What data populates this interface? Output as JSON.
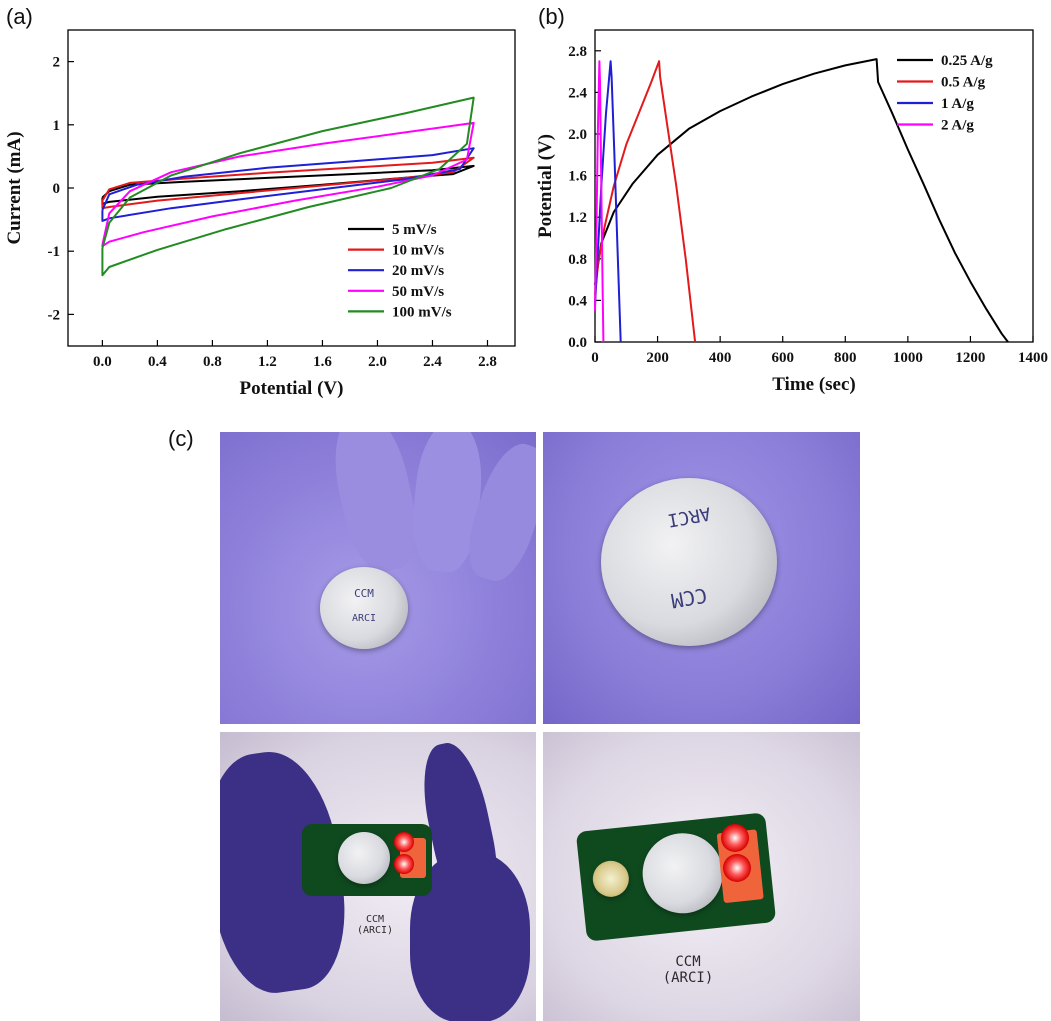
{
  "panels": {
    "a": "(a)",
    "b": "(b)",
    "c": "(c)"
  },
  "chart_data": [
    {
      "type": "line",
      "id": "a",
      "xlabel": "Potential (V)",
      "ylabel": "Current (mA)",
      "xlim": [
        -0.25,
        3.0
      ],
      "ylim": [
        -2.5,
        2.5
      ],
      "xticks": [
        0.0,
        0.4,
        0.8,
        1.2,
        1.6,
        2.0,
        2.4,
        2.8
      ],
      "xtick_labels": [
        "0.0",
        "0.4",
        "0.8",
        "1.2",
        "1.6",
        "2.0",
        "2.4",
        "2.8"
      ],
      "yticks": [
        -2,
        -1,
        0,
        1,
        2
      ],
      "ytick_labels": [
        "-2",
        "-1",
        "0",
        "1",
        "2"
      ],
      "legend_position": "bottom-right",
      "series": [
        {
          "name": "5 mV/s",
          "color": "#000000",
          "upper": [
            [
              0,
              -0.15
            ],
            [
              0.05,
              -0.05
            ],
            [
              0.2,
              0.05
            ],
            [
              0.6,
              0.1
            ],
            [
              1.2,
              0.16
            ],
            [
              1.8,
              0.22
            ],
            [
              2.4,
              0.28
            ],
            [
              2.7,
              0.35
            ]
          ],
          "lower": [
            [
              2.7,
              0.35
            ],
            [
              2.55,
              0.22
            ],
            [
              2.3,
              0.18
            ],
            [
              1.6,
              0.05
            ],
            [
              1.0,
              -0.05
            ],
            [
              0.4,
              -0.14
            ],
            [
              0.05,
              -0.22
            ],
            [
              0,
              -0.25
            ]
          ]
        },
        {
          "name": "10 mV/s",
          "color": "#e31a1c",
          "upper": [
            [
              0,
              -0.2
            ],
            [
              0.05,
              -0.02
            ],
            [
              0.2,
              0.08
            ],
            [
              0.6,
              0.15
            ],
            [
              1.2,
              0.24
            ],
            [
              1.8,
              0.32
            ],
            [
              2.4,
              0.4
            ],
            [
              2.7,
              0.48
            ]
          ],
          "lower": [
            [
              2.7,
              0.48
            ],
            [
              2.55,
              0.25
            ],
            [
              2.2,
              0.16
            ],
            [
              1.6,
              0.04
            ],
            [
              1.0,
              -0.08
            ],
            [
              0.4,
              -0.2
            ],
            [
              0.05,
              -0.3
            ],
            [
              0,
              -0.32
            ]
          ]
        },
        {
          "name": "20 mV/s",
          "color": "#1f1fd6",
          "upper": [
            [
              0,
              -0.35
            ],
            [
              0.05,
              -0.1
            ],
            [
              0.25,
              0.05
            ],
            [
              0.6,
              0.18
            ],
            [
              1.2,
              0.32
            ],
            [
              1.8,
              0.42
            ],
            [
              2.4,
              0.52
            ],
            [
              2.7,
              0.63
            ]
          ],
          "lower": [
            [
              2.7,
              0.63
            ],
            [
              2.6,
              0.3
            ],
            [
              2.2,
              0.14
            ],
            [
              1.6,
              -0.02
            ],
            [
              1.0,
              -0.18
            ],
            [
              0.5,
              -0.32
            ],
            [
              0.05,
              -0.48
            ],
            [
              0,
              -0.52
            ]
          ]
        },
        {
          "name": "50 mV/s",
          "color": "#ff00ff",
          "upper": [
            [
              0,
              -0.9
            ],
            [
              0.05,
              -0.4
            ],
            [
              0.2,
              -0.05
            ],
            [
              0.5,
              0.25
            ],
            [
              1.0,
              0.5
            ],
            [
              1.6,
              0.7
            ],
            [
              2.2,
              0.88
            ],
            [
              2.7,
              1.03
            ]
          ],
          "lower": [
            [
              2.7,
              1.03
            ],
            [
              2.65,
              0.45
            ],
            [
              2.4,
              0.2
            ],
            [
              2.0,
              0.02
            ],
            [
              1.4,
              -0.2
            ],
            [
              0.8,
              -0.45
            ],
            [
              0.3,
              -0.7
            ],
            [
              0.05,
              -0.85
            ],
            [
              0,
              -0.92
            ]
          ]
        },
        {
          "name": "100 mV/s",
          "color": "#228b22",
          "upper": [
            [
              0,
              -0.95
            ],
            [
              0.05,
              -0.55
            ],
            [
              0.2,
              -0.15
            ],
            [
              0.5,
              0.2
            ],
            [
              1.0,
              0.55
            ],
            [
              1.6,
              0.9
            ],
            [
              2.2,
              1.18
            ],
            [
              2.7,
              1.43
            ]
          ],
          "lower": [
            [
              2.7,
              1.43
            ],
            [
              2.65,
              0.7
            ],
            [
              2.45,
              0.3
            ],
            [
              2.1,
              0.0
            ],
            [
              1.5,
              -0.3
            ],
            [
              0.9,
              -0.65
            ],
            [
              0.4,
              -0.98
            ],
            [
              0.05,
              -1.25
            ],
            [
              0,
              -1.38
            ]
          ]
        }
      ]
    },
    {
      "type": "line",
      "id": "b",
      "xlabel": "Time (sec)",
      "ylabel": "Potential (V)",
      "xlim": [
        0,
        1400
      ],
      "ylim": [
        0,
        3.0
      ],
      "xticks": [
        0,
        200,
        400,
        600,
        800,
        1000,
        1200,
        1400
      ],
      "xtick_labels": [
        "0",
        "200",
        "400",
        "600",
        "800",
        "1000",
        "1200",
        "1400"
      ],
      "yticks": [
        0.0,
        0.4,
        0.8,
        1.2,
        1.6,
        2.0,
        2.4,
        2.8
      ],
      "ytick_labels": [
        "0.0",
        "0.4",
        "0.8",
        "1.2",
        "1.6",
        "2.0",
        "2.4",
        "2.8"
      ],
      "legend_position": "top-right",
      "series": [
        {
          "name": "0.25 A/g",
          "color": "#000000",
          "points": [
            [
              0,
              0.55
            ],
            [
              20,
              0.95
            ],
            [
              60,
              1.25
            ],
            [
              120,
              1.52
            ],
            [
              200,
              1.8
            ],
            [
              300,
              2.05
            ],
            [
              400,
              2.22
            ],
            [
              500,
              2.36
            ],
            [
              600,
              2.48
            ],
            [
              700,
              2.58
            ],
            [
              800,
              2.66
            ],
            [
              900,
              2.72
            ],
            [
              905,
              2.5
            ],
            [
              950,
              2.2
            ],
            [
              1000,
              1.85
            ],
            [
              1050,
              1.52
            ],
            [
              1100,
              1.18
            ],
            [
              1150,
              0.86
            ],
            [
              1200,
              0.58
            ],
            [
              1250,
              0.32
            ],
            [
              1300,
              0.08
            ],
            [
              1320,
              0.0
            ]
          ]
        },
        {
          "name": "0.5 A/g",
          "color": "#e31a1c",
          "points": [
            [
              0,
              0.45
            ],
            [
              10,
              0.75
            ],
            [
              30,
              1.1
            ],
            [
              60,
              1.5
            ],
            [
              100,
              1.9
            ],
            [
              140,
              2.2
            ],
            [
              180,
              2.5
            ],
            [
              205,
              2.7
            ],
            [
              208,
              2.55
            ],
            [
              230,
              2.1
            ],
            [
              260,
              1.5
            ],
            [
              290,
              0.8
            ],
            [
              320,
              0.0
            ]
          ]
        },
        {
          "name": "1 A/g",
          "color": "#1f1fd6",
          "points": [
            [
              0,
              0.35
            ],
            [
              8,
              0.8
            ],
            [
              20,
              1.5
            ],
            [
              35,
              2.2
            ],
            [
              50,
              2.7
            ],
            [
              53,
              2.55
            ],
            [
              62,
              1.8
            ],
            [
              72,
              0.9
            ],
            [
              82,
              0.0
            ]
          ]
        },
        {
          "name": "2 A/g",
          "color": "#ff00ff",
          "points": [
            [
              0,
              0.3
            ],
            [
              4,
              1.0
            ],
            [
              9,
              2.0
            ],
            [
              14,
              2.7
            ],
            [
              16,
              2.5
            ],
            [
              20,
              1.5
            ],
            [
              24,
              0.6
            ],
            [
              27,
              0.0
            ]
          ]
        }
      ]
    }
  ],
  "photos": {
    "coin_text_line1": "CCM",
    "coin_text_line2": "ARCI",
    "note_line1": "CCM",
    "note_line2": "(ARCI)"
  }
}
